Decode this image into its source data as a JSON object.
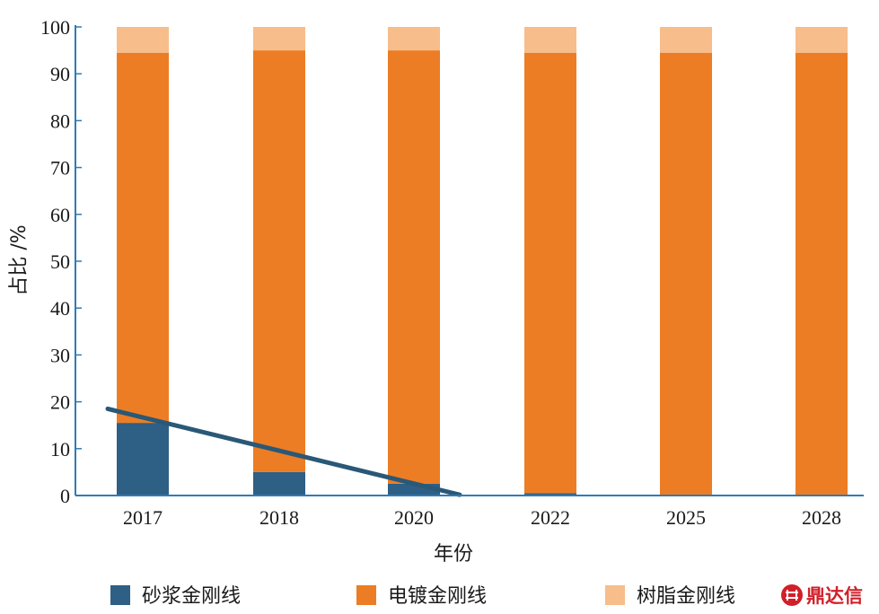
{
  "chart_data": {
    "type": "bar",
    "stacked": true,
    "xlabel": "年份",
    "ylabel": "占比 /%",
    "ylim": [
      0,
      100
    ],
    "yticks": [
      0,
      10,
      20,
      30,
      40,
      50,
      60,
      70,
      80,
      90,
      100
    ],
    "categories": [
      "2017",
      "2018",
      "2020",
      "2022",
      "2025",
      "2028"
    ],
    "series": [
      {
        "name": "砂浆金刚线",
        "color": "#2e5f85",
        "values": [
          15.5,
          5,
          2.5,
          0.5,
          0,
          0
        ]
      },
      {
        "name": "电镀金刚线",
        "color": "#ec7d24",
        "values": [
          79,
          90,
          92.5,
          94,
          94.5,
          94.5
        ]
      },
      {
        "name": "树脂金刚线",
        "color": "#f7bd8b",
        "values": [
          5.5,
          5,
          5,
          5.5,
          5.5,
          5.5
        ]
      }
    ],
    "trendline": {
      "color": "#2a5877",
      "from": [
        "2017",
        18.5
      ],
      "to": [
        "2020",
        1.5
      ]
    },
    "legend_position": "bottom",
    "grid": false
  },
  "watermark": {
    "text": "鼎达信",
    "logo_icon": "dingdaxin-logo-icon",
    "color": "#d0202a"
  }
}
